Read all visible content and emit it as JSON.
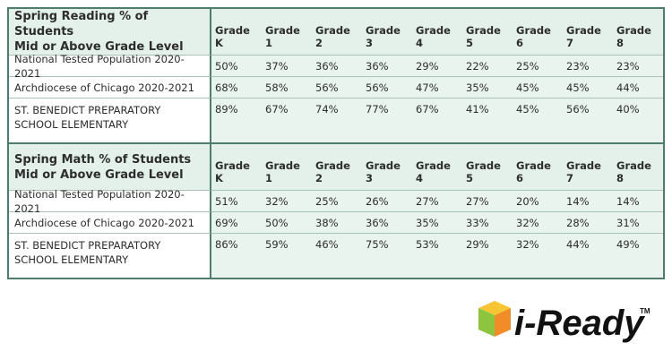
{
  "tables": [
    {
      "title_lines": [
        "Spring Reading % of Students",
        "Mid or Above Grade Level"
      ],
      "columns": [
        "Grade K",
        "Grade 1",
        "Grade 2",
        "Grade 3",
        "Grade 4",
        "Grade 5",
        "Grade 6",
        "Grade 7",
        "Grade 8"
      ],
      "rows": [
        {
          "label": "National Tested Population 2020-2021",
          "values": [
            "50%",
            "37%",
            "36%",
            "36%",
            "29%",
            "22%",
            "25%",
            "23%",
            "23%"
          ]
        },
        {
          "label": "Archdiocese of Chicago 2020-2021",
          "values": [
            "68%",
            "58%",
            "56%",
            "56%",
            "47%",
            "35%",
            "45%",
            "45%",
            "44%"
          ]
        },
        {
          "label": "ST. BENEDICT PREPARATORY SCHOOL ELEMENTARY",
          "values": [
            "89%",
            "67%",
            "74%",
            "77%",
            "67%",
            "41%",
            "45%",
            "56%",
            "40%"
          ]
        }
      ]
    },
    {
      "title_lines": [
        "Spring Math % of Students",
        "Mid or Above Grade Level"
      ],
      "columns": [
        "Grade K",
        "Grade 1",
        "Grade 2",
        "Grade 3",
        "Grade 4",
        "Grade 5",
        "Grade 6",
        "Grade 7",
        "Grade 8"
      ],
      "rows": [
        {
          "label": "National Tested Population 2020-2021",
          "values": [
            "51%",
            "32%",
            "25%",
            "26%",
            "27%",
            "27%",
            "20%",
            "14%",
            "14%"
          ]
        },
        {
          "label": "Archdiocese of Chicago 2020-2021",
          "values": [
            "69%",
            "50%",
            "38%",
            "36%",
            "35%",
            "33%",
            "32%",
            "28%",
            "31%"
          ]
        },
        {
          "label": "ST. BENEDICT PREPARATORY SCHOOL ELEMENTARY",
          "values": [
            "86%",
            "59%",
            "46%",
            "75%",
            "53%",
            "29%",
            "32%",
            "44%",
            "49%"
          ]
        }
      ]
    }
  ],
  "logo": {
    "name": "i-Ready",
    "trademark": "TM"
  }
}
